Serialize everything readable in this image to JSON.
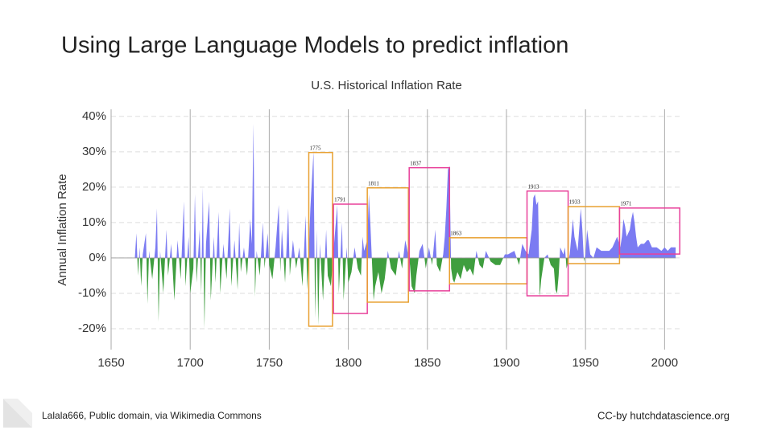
{
  "slide": {
    "title": "Using Large Language Models to predict inflation",
    "credit": "Lalala666, Public domain, via Wikimedia Commons",
    "license": "CC-by hutchdatascience.org"
  },
  "chart_data": {
    "type": "area",
    "title": "U.S. Historical Inflation Rate",
    "y_label": "Annual Inflation Rate",
    "colors": {
      "positive": "#7b7bf2",
      "negative": "#3f9e3f"
    },
    "x": [
      1650,
      1665,
      1666,
      1667,
      1668,
      1669,
      1670,
      1672,
      1673,
      1674,
      1676,
      1678,
      1679,
      1680,
      1681,
      1683,
      1685,
      1686,
      1688,
      1690,
      1692,
      1694,
      1696,
      1697,
      1699,
      1700,
      1702,
      1703,
      1704,
      1706,
      1707,
      1708,
      1709,
      1710,
      1712,
      1713,
      1715,
      1716,
      1718,
      1719,
      1721,
      1723,
      1725,
      1726,
      1728,
      1730,
      1731,
      1732,
      1734,
      1736,
      1738,
      1739,
      1740,
      1741,
      1742,
      1744,
      1746,
      1747,
      1749,
      1750,
      1752,
      1754,
      1756,
      1757,
      1758,
      1760,
      1762,
      1763,
      1765,
      1767,
      1769,
      1771,
      1773,
      1774,
      1775,
      1776,
      1778,
      1779,
      1780,
      1781,
      1782,
      1784,
      1786,
      1787,
      1789,
      1791,
      1793,
      1794,
      1796,
      1797,
      1799,
      1800,
      1802,
      1804,
      1806,
      1808,
      1809,
      1810,
      1812,
      1813,
      1814,
      1816,
      1817,
      1819,
      1821,
      1823,
      1825,
      1827,
      1830,
      1832,
      1834,
      1836,
      1837,
      1839,
      1840,
      1842,
      1843,
      1845,
      1847,
      1849,
      1851,
      1853,
      1855,
      1856,
      1858,
      1860,
      1861,
      1862,
      1863,
      1864,
      1865,
      1866,
      1867,
      1869,
      1871,
      1873,
      1875,
      1877,
      1879,
      1881,
      1883,
      1885,
      1887,
      1890,
      1893,
      1896,
      1899,
      1901,
      1905,
      1908,
      1910,
      1912,
      1914,
      1916,
      1917,
      1918,
      1919,
      1920,
      1921,
      1922,
      1924,
      1926,
      1928,
      1930,
      1931,
      1932,
      1933,
      1934,
      1936,
      1937,
      1938,
      1940,
      1942,
      1943,
      1945,
      1946,
      1947,
      1948,
      1949,
      1950,
      1951,
      1953,
      1955,
      1957,
      1960,
      1965,
      1967,
      1969,
      1970,
      1972,
      1973,
      1974,
      1975,
      1976,
      1978,
      1979,
      1980,
      1981,
      1982,
      1983,
      1985,
      1987,
      1989,
      1990,
      1992,
      1995,
      1998,
      2000,
      2002,
      2004,
      2006,
      2007
    ],
    "values": [
      0,
      0,
      7,
      -5,
      3,
      -8,
      1,
      7,
      -13,
      2,
      -6,
      3,
      14,
      -18,
      2,
      -10,
      8,
      -5,
      4,
      -12,
      5,
      -6,
      16,
      -8,
      6,
      -10,
      -3,
      18,
      -7,
      8,
      -10,
      20,
      -20,
      4,
      16,
      -12,
      6,
      -7,
      13,
      -10,
      4,
      -6,
      14,
      -8,
      5,
      -9,
      10,
      -4,
      3,
      -5,
      11,
      4,
      38,
      -11,
      2,
      -5,
      10,
      -3,
      7,
      -2,
      -6,
      3,
      15,
      -4,
      8,
      -7,
      14,
      -5,
      5,
      -3,
      3,
      -8,
      12,
      -9,
      2,
      14,
      30,
      -17,
      8,
      -19,
      4,
      -12,
      8,
      -5,
      -8,
      4,
      15,
      -10,
      10,
      -12,
      3,
      -7,
      -4,
      3,
      -3,
      -5,
      6,
      2,
      5,
      18,
      9,
      -12,
      -8,
      -4,
      -10,
      -6,
      2,
      -3,
      -5,
      2,
      -3,
      5,
      3,
      -2,
      -8,
      -10,
      -5,
      2,
      4,
      -3,
      3,
      -2,
      8,
      -2,
      -4,
      1,
      6,
      14,
      25,
      26,
      -3,
      -6,
      -7,
      -4,
      -6,
      -2,
      -4,
      -3,
      -5,
      2,
      -2,
      -3,
      2,
      -1,
      -2,
      -2,
      1,
      1,
      2,
      -2,
      4,
      2,
      1,
      8,
      17,
      18,
      15,
      16,
      -11,
      -6,
      0,
      1,
      -2,
      -3,
      -9,
      -10,
      -5,
      3,
      1,
      3,
      -3,
      1,
      11,
      6,
      2,
      8,
      14,
      8,
      -1,
      1,
      8,
      1,
      0,
      3,
      2,
      2,
      3,
      5,
      6,
      3,
      6,
      11,
      9,
      6,
      8,
      11,
      13,
      10,
      6,
      3,
      4,
      4,
      5,
      5,
      3,
      3,
      2,
      3,
      2,
      3,
      3,
      3
    ],
    "xlim": [
      1650,
      2010
    ],
    "ylim": [
      -25,
      42
    ],
    "xticks": [
      1650,
      1700,
      1750,
      1800,
      1850,
      1900,
      1950,
      2000
    ],
    "xgrid": [
      1700,
      1750,
      1800,
      1850,
      1900,
      1950,
      2000
    ],
    "yticks": [
      {
        "value": 40,
        "label": "40%"
      },
      {
        "value": 30,
        "label": "30%"
      },
      {
        "value": 20,
        "label": "20%"
      },
      {
        "value": 10,
        "label": "10%"
      },
      {
        "value": 0,
        "label": "0%"
      },
      {
        "value": -10,
        "label": "-10%"
      },
      {
        "value": -20,
        "label": "-20%"
      }
    ],
    "grid": true,
    "annotations": [
      {
        "label": "1775",
        "x": [
          1775,
          1790
        ],
        "y": [
          29.8,
          -19.3
        ],
        "color": "#e8a030"
      },
      {
        "label": "1791",
        "x": [
          1790.6,
          1812
        ],
        "y": [
          15.2,
          -15.7
        ],
        "color": "#e8409a"
      },
      {
        "label": "1811",
        "x": [
          1812,
          1838
        ],
        "y": [
          19.8,
          -12.5
        ],
        "color": "#e8a030"
      },
      {
        "label": "1837",
        "x": [
          1838.5,
          1864
        ],
        "y": [
          25.5,
          -9.3
        ],
        "color": "#e8409a"
      },
      {
        "label": "1863",
        "x": [
          1864,
          1913
        ],
        "y": [
          5.7,
          -7.3
        ],
        "color": "#e8a030"
      },
      {
        "label": "1913",
        "x": [
          1913,
          1939
        ],
        "y": [
          18.9,
          -10.7
        ],
        "color": "#e8409a"
      },
      {
        "label": "1933",
        "x": [
          1939,
          1971.5
        ],
        "y": [
          14.5,
          -1.6
        ],
        "color": "#e8a030"
      },
      {
        "label": "1971",
        "x": [
          1971.5,
          2009.6
        ],
        "y": [
          14.1,
          1.1
        ],
        "color": "#e8409a"
      }
    ]
  }
}
